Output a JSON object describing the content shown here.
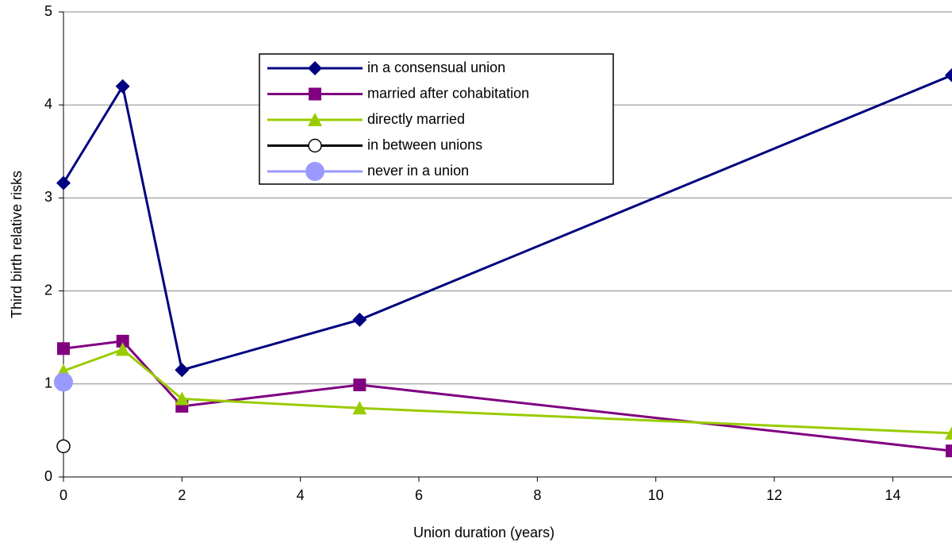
{
  "chart_data": {
    "type": "line",
    "x_label": "Union duration (years)",
    "y_label": "Third birth relative risks",
    "xlim": [
      0,
      15
    ],
    "xticks": [
      0,
      2,
      4,
      6,
      8,
      10,
      12,
      14
    ],
    "ylim": [
      0,
      5
    ],
    "yticks": [
      0,
      1,
      2,
      3,
      4,
      5
    ],
    "grid": true,
    "legend": "top-center",
    "series": [
      {
        "name": "in a consensual union",
        "color": "#000080",
        "marker": "diamond",
        "x": [
          0,
          1,
          2,
          5,
          15
        ],
        "values": [
          3.16,
          4.2,
          1.15,
          1.69,
          4.32
        ]
      },
      {
        "name": "married after cohabitation",
        "color": "#800080",
        "marker": "square",
        "x": [
          0,
          1,
          2,
          5,
          15
        ],
        "values": [
          1.38,
          1.46,
          0.76,
          0.99,
          0.28
        ]
      },
      {
        "name": "directly married",
        "color": "#99cc00",
        "marker": "triangle",
        "x": [
          0,
          1,
          2,
          5,
          15
        ],
        "values": [
          1.14,
          1.37,
          0.84,
          0.74,
          0.47
        ]
      },
      {
        "name": "in between unions",
        "color": "#000000",
        "marker": "circle-open",
        "x": [
          0
        ],
        "values": [
          0.33
        ]
      },
      {
        "name": "never in a union",
        "color": "#9999ff",
        "marker": "circle",
        "x": [
          0
        ],
        "values": [
          1.02
        ]
      }
    ]
  }
}
